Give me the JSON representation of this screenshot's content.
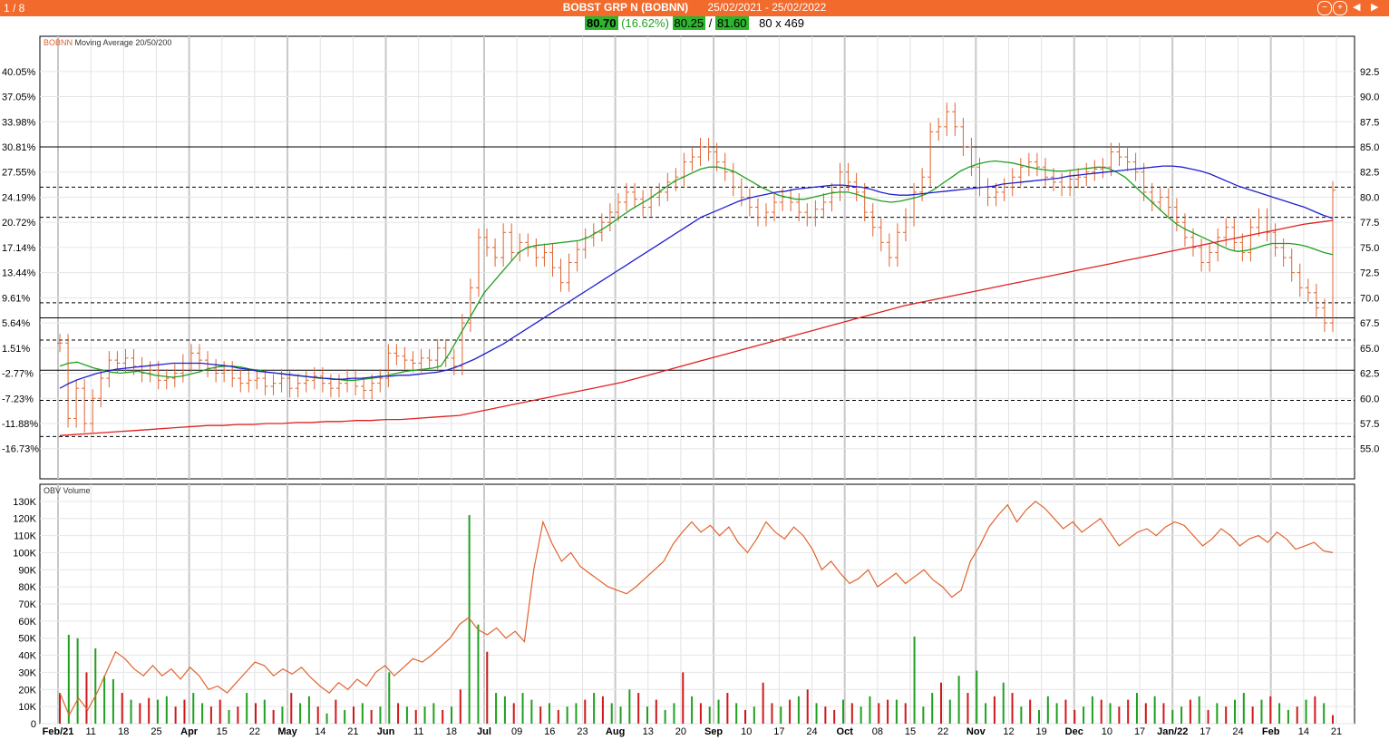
{
  "header": {
    "page_indicator": "1 / 8",
    "instrument": "BOBST GRP N (BOBNN)",
    "date_range": "25/02/2021 - 25/02/2022",
    "controls": {
      "zoom_out": "−",
      "zoom_in": "+",
      "prev": "◀",
      "next": "▶"
    }
  },
  "quote": {
    "last": "80.70",
    "change_pct": "(16.62%)",
    "low": "80.25",
    "separator": "/",
    "high": "81.60",
    "dims": "80 x 469"
  },
  "colors": {
    "price_bars": "#e0632e",
    "ma20": "#1fa01f",
    "ma50": "#1f1fcf",
    "ma200": "#e02020",
    "obv": "#e0632e",
    "volume_up": "#1fa01f",
    "volume_down": "#d01818"
  },
  "chart_data": [
    {
      "type": "line",
      "panel": "price",
      "title": "BOBNN",
      "subtitle": "Moving Average 20/50/200",
      "grid": true,
      "ylim": [
        52.0,
        96.0
      ],
      "y_ticks_right": [
        "55.0",
        "57.5",
        "60.0",
        "62.5",
        "65.0",
        "67.5",
        "70.0",
        "72.5",
        "75.0",
        "77.5",
        "80.0",
        "82.5",
        "85.0",
        "87.5",
        "90.0",
        "92.5"
      ],
      "y_ticks_left": [
        "-16.73%",
        "-11.88%",
        "-7.23%",
        "-2.77%",
        "1.51%",
        "5.64%",
        "9.61%",
        "13.44%",
        "17.14%",
        "20.72%",
        "24.19%",
        "27.55%",
        "30.81%",
        "33.98%",
        "37.05%",
        "40.05%"
      ],
      "x_ticks": [
        "Feb/21",
        "11",
        "18",
        "25",
        "Apr",
        "15",
        "22",
        "May",
        "14",
        "21",
        "Jun",
        "11",
        "18",
        "Jul",
        "09",
        "16",
        "23",
        "Aug",
        "13",
        "20",
        "Sep",
        "10",
        "17",
        "24",
        "Oct",
        "08",
        "15",
        "22",
        "Nov",
        "12",
        "19",
        "Dec",
        "10",
        "17",
        "Jan/22",
        "17",
        "24",
        "Feb",
        "14",
        "21"
      ],
      "horizontal_levels": [
        {
          "value": 85.0,
          "style": "solid"
        },
        {
          "value": 81.0,
          "style": "dashed"
        },
        {
          "value": 78.0,
          "style": "dashed"
        },
        {
          "value": 69.5,
          "style": "dashed"
        },
        {
          "value": 68.0,
          "style": "solid"
        },
        {
          "value": 65.8,
          "style": "dashed"
        },
        {
          "value": 62.8,
          "style": "solid"
        },
        {
          "value": 59.8,
          "style": "dashed"
        },
        {
          "value": 56.2,
          "style": "dashed"
        }
      ],
      "close": [
        65.5,
        58.0,
        61.0,
        57.5,
        60.0,
        62.0,
        63.8,
        63.5,
        64.0,
        63.2,
        62.5,
        62.8,
        61.8,
        62.0,
        62.5,
        63.5,
        64.5,
        63.8,
        63.0,
        62.5,
        62.8,
        62.0,
        61.5,
        61.8,
        62.0,
        61.2,
        61.5,
        62.0,
        61.0,
        61.5,
        61.8,
        62.2,
        61.5,
        61.0,
        61.5,
        62.0,
        61.2,
        60.8,
        61.5,
        62.0,
        64.5,
        64.2,
        63.8,
        63.5,
        64.0,
        63.8,
        65.0,
        64.0,
        63.2,
        67.5,
        71.0,
        76.0,
        75.0,
        74.0,
        76.5,
        74.5,
        75.5,
        75.0,
        74.0,
        74.5,
        73.0,
        71.5,
        73.5,
        74.8,
        76.0,
        76.5,
        77.5,
        78.5,
        79.5,
        80.5,
        79.8,
        79.0,
        80.0,
        80.5,
        81.5,
        82.0,
        83.5,
        84.0,
        85.0,
        84.5,
        83.5,
        82.5,
        81.0,
        80.0,
        79.0,
        78.0,
        78.5,
        79.5,
        80.0,
        79.5,
        78.5,
        78.0,
        78.8,
        79.5,
        80.5,
        82.5,
        81.5,
        80.5,
        78.5,
        77.0,
        75.5,
        74.0,
        76.5,
        78.0,
        80.5,
        82.0,
        86.5,
        87.0,
        88.5,
        87.0,
        85.0,
        83.0,
        81.0,
        80.0,
        80.5,
        81.0,
        82.0,
        83.0,
        83.5,
        83.0,
        82.0,
        81.5,
        81.0,
        81.8,
        82.0,
        82.5,
        82.8,
        83.0,
        84.5,
        84.0,
        83.5,
        82.5,
        80.5,
        79.5,
        80.0,
        79.0,
        77.5,
        76.0,
        75.0,
        73.5,
        74.5,
        76.0,
        77.0,
        75.5,
        74.5,
        77.0,
        78.0,
        76.5,
        75.0,
        74.0,
        72.5,
        71.0,
        70.5,
        69.0,
        67.5,
        80.7
      ],
      "series": [
        {
          "name": "20",
          "values": [
            63.2,
            63.5,
            63.6,
            63.3,
            63.0,
            62.8,
            62.6,
            62.5,
            62.6,
            62.7,
            62.5,
            62.3,
            62.2,
            62.1,
            62.2,
            62.4,
            62.6,
            62.9,
            63.1,
            63.2,
            63.2,
            63.1,
            62.9,
            62.8,
            62.6,
            62.5,
            62.4,
            62.3,
            62.2,
            62.1,
            62.0,
            62.0,
            61.9,
            61.8,
            61.8,
            61.9,
            62.0,
            62.1,
            62.3,
            62.5,
            62.7,
            62.8,
            62.9,
            63.0,
            63.2,
            64.5,
            66.0,
            67.5,
            69.0,
            70.5,
            71.5,
            72.5,
            73.5,
            74.5,
            75.0,
            75.2,
            75.3,
            75.4,
            75.5,
            75.6,
            75.7,
            76.0,
            76.5,
            77.0,
            77.6,
            78.2,
            78.8,
            79.3,
            79.8,
            80.4,
            81.0,
            81.6,
            82.0,
            82.4,
            82.8,
            83.0,
            83.0,
            82.8,
            82.5,
            82.0,
            81.5,
            81.0,
            80.6,
            80.2,
            80.0,
            79.8,
            79.8,
            80.0,
            80.2,
            80.4,
            80.5,
            80.5,
            80.3,
            80.0,
            79.8,
            79.6,
            79.5,
            79.6,
            79.8,
            80.0,
            80.3,
            80.8,
            81.4,
            82.0,
            82.6,
            83.0,
            83.3,
            83.5,
            83.6,
            83.5,
            83.4,
            83.2,
            83.0,
            82.8,
            82.7,
            82.6,
            82.6,
            82.7,
            82.8,
            82.9,
            83.0,
            82.9,
            82.5,
            82.0,
            81.2,
            80.4,
            79.6,
            78.8,
            78.0,
            77.3,
            76.8,
            76.4,
            76.0,
            75.6,
            75.2,
            74.8,
            74.6,
            74.7,
            74.9,
            75.2,
            75.4,
            75.4,
            75.4,
            75.3,
            75.1,
            74.8,
            74.5,
            74.3
          ]
        },
        {
          "name": "50",
          "values": [
            61.0,
            61.5,
            61.9,
            62.2,
            62.5,
            62.7,
            62.9,
            63.0,
            63.1,
            63.2,
            63.3,
            63.4,
            63.5,
            63.5,
            63.5,
            63.5,
            63.4,
            63.3,
            63.2,
            63.0,
            62.9,
            62.7,
            62.6,
            62.5,
            62.4,
            62.3,
            62.2,
            62.1,
            62.0,
            61.9,
            61.9,
            62.0,
            62.0,
            62.1,
            62.2,
            62.2,
            62.3,
            62.3,
            62.4,
            62.5,
            62.6,
            62.8,
            63.1,
            63.5,
            63.9,
            64.4,
            64.9,
            65.4,
            66.0,
            66.6,
            67.2,
            67.8,
            68.4,
            69.0,
            69.6,
            70.2,
            70.8,
            71.4,
            72.0,
            72.6,
            73.2,
            73.8,
            74.4,
            75.0,
            75.6,
            76.2,
            76.8,
            77.4,
            78.0,
            78.4,
            78.8,
            79.2,
            79.6,
            79.9,
            80.1,
            80.3,
            80.5,
            80.6,
            80.8,
            80.9,
            81.0,
            81.1,
            81.2,
            81.2,
            81.1,
            81.0,
            80.8,
            80.5,
            80.3,
            80.2,
            80.2,
            80.3,
            80.4,
            80.5,
            80.6,
            80.7,
            80.8,
            80.9,
            81.0,
            81.1,
            81.3,
            81.4,
            81.5,
            81.6,
            81.7,
            81.8,
            81.9,
            82.1,
            82.2,
            82.3,
            82.4,
            82.5,
            82.6,
            82.7,
            82.8,
            82.9,
            83.0,
            83.1,
            83.1,
            83.0,
            82.8,
            82.6,
            82.3,
            81.9,
            81.5,
            81.1,
            80.8,
            80.5,
            80.2,
            79.9,
            79.6,
            79.3,
            79.0,
            78.6,
            78.2,
            77.9
          ]
        },
        {
          "name": "200",
          "values": [
            56.3,
            56.4,
            56.5,
            56.6,
            56.7,
            56.8,
            56.9,
            57.0,
            57.1,
            57.2,
            57.3,
            57.3,
            57.4,
            57.4,
            57.5,
            57.5,
            57.6,
            57.6,
            57.7,
            57.7,
            57.8,
            57.8,
            57.9,
            57.9,
            58.0,
            58.1,
            58.2,
            58.3,
            58.6,
            58.9,
            59.2,
            59.5,
            59.8,
            60.1,
            60.4,
            60.7,
            61.0,
            61.3,
            61.6,
            62.0,
            62.4,
            62.8,
            63.2,
            63.6,
            64.0,
            64.4,
            64.8,
            65.2,
            65.6,
            66.0,
            66.4,
            66.8,
            67.2,
            67.6,
            68.0,
            68.4,
            68.8,
            69.2,
            69.5,
            69.8,
            70.1,
            70.4,
            70.7,
            71.0,
            71.3,
            71.6,
            71.9,
            72.2,
            72.5,
            72.8,
            73.1,
            73.4,
            73.7,
            74.0,
            74.3,
            74.6,
            74.9,
            75.2,
            75.5,
            75.8,
            76.1,
            76.4,
            76.7,
            77.0,
            77.3,
            77.5,
            77.7
          ]
        }
      ]
    },
    {
      "type": "line",
      "panel": "obv",
      "title": "OBV Volume",
      "ylim": [
        0,
        140000
      ],
      "y_ticks": [
        "0",
        "10K",
        "20K",
        "30K",
        "40K",
        "50K",
        "60K",
        "70K",
        "80K",
        "90K",
        "100K",
        "110K",
        "120K",
        "130K"
      ],
      "obv": [
        18000,
        5000,
        15000,
        8000,
        18000,
        30000,
        42000,
        38000,
        32000,
        28000,
        34000,
        28000,
        32000,
        26000,
        33000,
        28000,
        20000,
        22000,
        18000,
        24000,
        30000,
        36000,
        34000,
        28000,
        32000,
        29000,
        33000,
        27000,
        22000,
        18000,
        24000,
        20000,
        26000,
        22000,
        30000,
        34000,
        28000,
        33000,
        38000,
        36000,
        40000,
        45000,
        50000,
        58000,
        62000,
        55000,
        52000,
        56000,
        50000,
        54000,
        48000,
        90000,
        118000,
        105000,
        95000,
        100000,
        92000,
        88000,
        84000,
        80000,
        78000,
        76000,
        80000,
        85000,
        90000,
        95000,
        105000,
        112000,
        118000,
        112000,
        116000,
        110000,
        115000,
        106000,
        100000,
        108000,
        118000,
        112000,
        108000,
        115000,
        110000,
        102000,
        90000,
        95000,
        88000,
        82000,
        85000,
        90000,
        80000,
        84000,
        88000,
        82000,
        86000,
        90000,
        84000,
        80000,
        74000,
        78000,
        95000,
        104000,
        115000,
        122000,
        128000,
        118000,
        125000,
        130000,
        126000,
        120000,
        114000,
        118000,
        112000,
        116000,
        120000,
        112000,
        104000,
        108000,
        112000,
        114000,
        110000,
        115000,
        118000,
        116000,
        110000,
        104000,
        108000,
        114000,
        110000,
        104000,
        108000,
        110000,
        106000,
        112000,
        108000,
        102000,
        104000,
        106000,
        101000,
        100000
      ],
      "volume": [
        18000,
        52000,
        50000,
        30000,
        44000,
        28000,
        26000,
        18000,
        14000,
        12000,
        15000,
        14000,
        16000,
        10000,
        14000,
        18000,
        12000,
        10000,
        14000,
        8000,
        10000,
        18000,
        12000,
        14000,
        8000,
        10000,
        18000,
        12000,
        16000,
        10000,
        6000,
        14000,
        8000,
        10000,
        12000,
        8000,
        10000,
        30000,
        12000,
        10000,
        8000,
        10000,
        12000,
        8000,
        10000,
        20000,
        122000,
        58000,
        42000,
        18000,
        16000,
        12000,
        18000,
        14000,
        10000,
        12000,
        8000,
        10000,
        12000,
        14000,
        18000,
        16000,
        12000,
        10000,
        20000,
        18000,
        10000,
        14000,
        8000,
        12000,
        30000,
        16000,
        12000,
        10000,
        14000,
        18000,
        12000,
        8000,
        10000,
        24000,
        12000,
        10000,
        14000,
        16000,
        20000,
        12000,
        10000,
        8000,
        14000,
        12000,
        10000,
        16000,
        12000,
        14000,
        14000,
        12000,
        51000,
        10000,
        18000,
        24000,
        14000,
        28000,
        18000,
        31000,
        12000,
        16000,
        24000,
        18000,
        10000,
        14000,
        8000,
        16000,
        12000,
        14000,
        8000,
        10000,
        16000,
        14000,
        12000,
        10000,
        14000,
        18000,
        12000,
        16000,
        12000,
        8000,
        10000,
        14000,
        16000,
        8000,
        12000,
        10000,
        14000,
        18000,
        10000,
        14000,
        16000,
        12000,
        8000,
        10000,
        14000,
        16000,
        12000,
        5000
      ],
      "volume_up": [
        0,
        1,
        1,
        0,
        1,
        1,
        1,
        0,
        1,
        0,
        0,
        1,
        1,
        0,
        0,
        1,
        1,
        0,
        0,
        1,
        0,
        1,
        0,
        1,
        0,
        1,
        0,
        1,
        1,
        0,
        1,
        0,
        1,
        0,
        1,
        0,
        1,
        1,
        0,
        1,
        0,
        1,
        1,
        0,
        1,
        0,
        1,
        1,
        0,
        1,
        1,
        0,
        1,
        1,
        0,
        1,
        0,
        1,
        1,
        0,
        1,
        0,
        1,
        1,
        1,
        0,
        1,
        0,
        1,
        1,
        0,
        1,
        0,
        1,
        1,
        0,
        1,
        0,
        1,
        0,
        0,
        1,
        0,
        1,
        0,
        1,
        0,
        0,
        1,
        0,
        1,
        1,
        0,
        0,
        1,
        0,
        1,
        1,
        1,
        0,
        1,
        1,
        0,
        1,
        1,
        0,
        1,
        0,
        1,
        0,
        1,
        1,
        1,
        0,
        0,
        1,
        1,
        0,
        1,
        0,
        0,
        1,
        0,
        1,
        0,
        1,
        1,
        0,
        1,
        0,
        1,
        0,
        1,
        1,
        0,
        1,
        0,
        1,
        1,
        0,
        1,
        0,
        1
      ]
    }
  ]
}
